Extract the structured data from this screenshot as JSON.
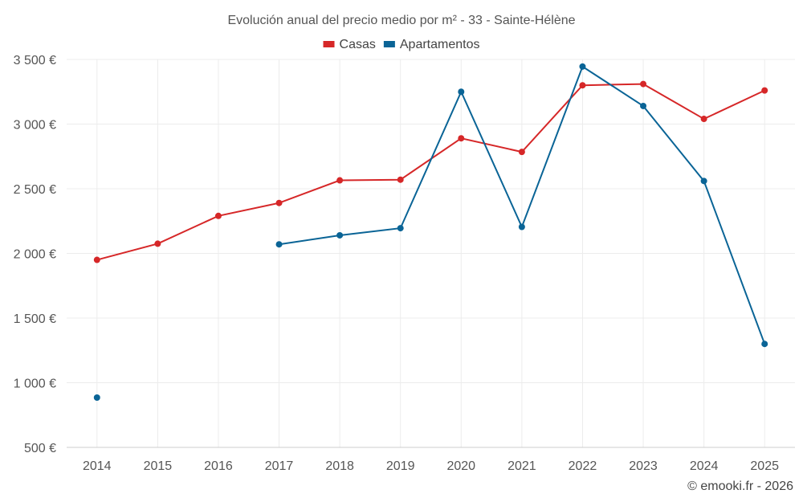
{
  "chart_data": {
    "type": "line",
    "title": "Evolución anual del precio medio por m² - 33 - Sainte-Hélène",
    "categories": [
      "2014",
      "2015",
      "2016",
      "2017",
      "2018",
      "2019",
      "2020",
      "2021",
      "2022",
      "2023",
      "2024",
      "2025"
    ],
    "series": [
      {
        "name": "Casas",
        "color": "#d62728",
        "values": [
          1950,
          2075,
          2290,
          2390,
          2565,
          2570,
          2890,
          2785,
          3300,
          3310,
          3040,
          3260
        ]
      },
      {
        "name": "Apartamentos",
        "color": "#0a6496",
        "values": [
          885,
          null,
          null,
          2070,
          2140,
          2195,
          3250,
          2205,
          3445,
          3140,
          2560,
          1300
        ]
      }
    ],
    "ylim": [
      500,
      3500
    ],
    "yticks": [
      500,
      1000,
      1500,
      2000,
      2500,
      3000,
      3500
    ],
    "ytick_labels": [
      "500 €",
      "1 000 €",
      "1 500 €",
      "2 000 €",
      "2 500 €",
      "3 000 €",
      "3 500 €"
    ],
    "xlabel": "",
    "ylabel": "",
    "legend": "top-center",
    "grid": true
  },
  "credit": "© emooki.fr - 2026"
}
